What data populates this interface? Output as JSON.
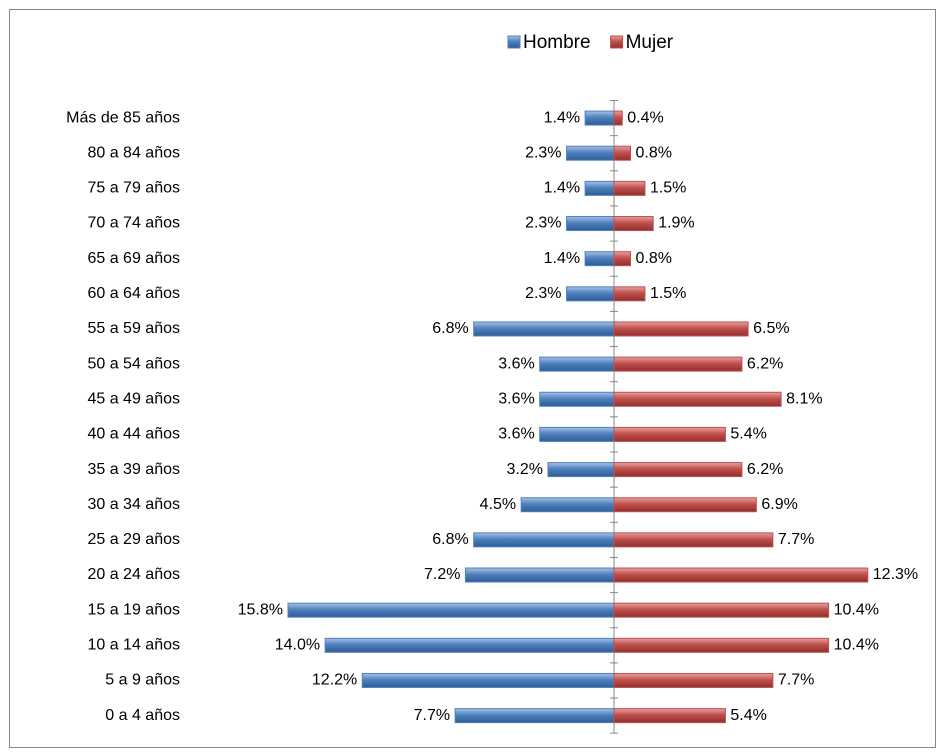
{
  "chart_data": {
    "type": "pyramid",
    "legend": "top",
    "categories": [
      "Más de 85 años",
      "80 a 84 años",
      "75 a 79 años",
      "70 a 74 años",
      "65 a 69 años",
      "60 a 64 años",
      "55 a 59 años",
      "50 a 54 años",
      "45 a 49 años",
      "40 a 44 años",
      "35 a 39 años",
      "30 a 34 años",
      "25 a 29 años",
      "20 a 24 años",
      "15 a 19 años",
      "10 a 14 años",
      "5 a 9 años",
      "0 a 4 años"
    ],
    "series": [
      {
        "name": "Hombre",
        "color": "#4f81bd",
        "values": [
          1.4,
          2.3,
          1.4,
          2.3,
          1.4,
          2.3,
          6.8,
          3.6,
          3.6,
          3.6,
          3.2,
          4.5,
          6.8,
          7.2,
          15.8,
          14.0,
          12.2,
          7.7
        ],
        "value_labels": [
          "1.4%",
          "2.3%",
          "1.4%",
          "2.3%",
          "1.4%",
          "2.3%",
          "6.8%",
          "3.6%",
          "3.6%",
          "3.6%",
          "3.2%",
          "4.5%",
          "6.8%",
          "7.2%",
          "15.8%",
          "14.0%",
          "12.2%",
          "7.7%"
        ]
      },
      {
        "name": "Mujer",
        "color": "#c0504d",
        "values": [
          0.4,
          0.8,
          1.5,
          1.9,
          0.8,
          1.5,
          6.5,
          6.2,
          8.1,
          5.4,
          6.2,
          6.9,
          7.7,
          12.3,
          10.4,
          10.4,
          7.7,
          5.4
        ],
        "value_labels": [
          "0.4%",
          "0.8%",
          "1.5%",
          "1.9%",
          "0.8%",
          "1.5%",
          "6.5%",
          "6.2%",
          "8.1%",
          "5.4%",
          "6.2%",
          "6.9%",
          "7.7%",
          "12.3%",
          "10.4%",
          "10.4%",
          "7.7%",
          "5.4%"
        ]
      }
    ]
  }
}
